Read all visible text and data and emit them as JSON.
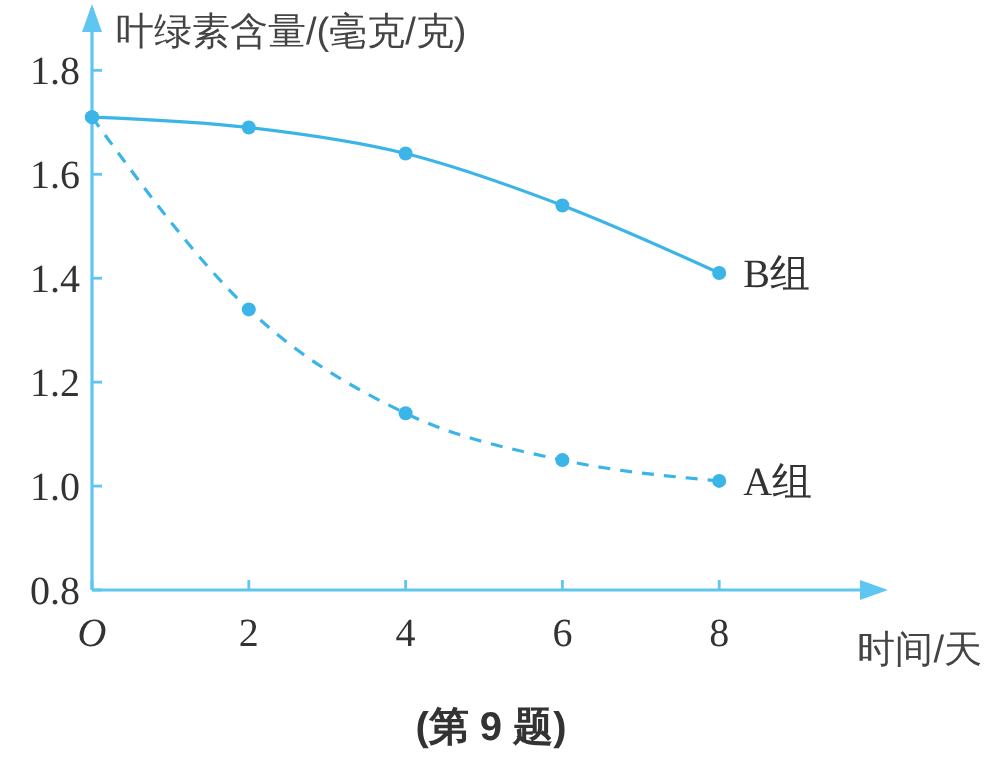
{
  "chart_data": {
    "type": "line",
    "ylabel": "叶绿素含量/(毫克/克)",
    "xlabel": "时间/天",
    "annotations": [
      "(第 9 题)"
    ],
    "x": [
      0,
      2,
      4,
      6,
      8
    ],
    "series": [
      {
        "name": "B组",
        "color": "#3bb4e8",
        "values": [
          1.71,
          1.69,
          1.64,
          1.54,
          1.41
        ],
        "line_style": "solid"
      },
      {
        "name": "A组",
        "color": "#3bb4e8",
        "values": [
          1.71,
          1.34,
          1.14,
          1.05,
          1.01
        ],
        "line_style": "dashed"
      }
    ],
    "marker": "circle",
    "xlim": [
      0,
      10
    ],
    "ylim": [
      0.8,
      1.92
    ],
    "xticks": [
      {
        "value": 0,
        "label": "O"
      },
      2,
      4,
      6,
      8
    ],
    "yticks": [
      0.8,
      {
        "value": 1,
        "label": "1.0"
      },
      1.2,
      1.4,
      1.6,
      1.8
    ],
    "grid": false
  }
}
